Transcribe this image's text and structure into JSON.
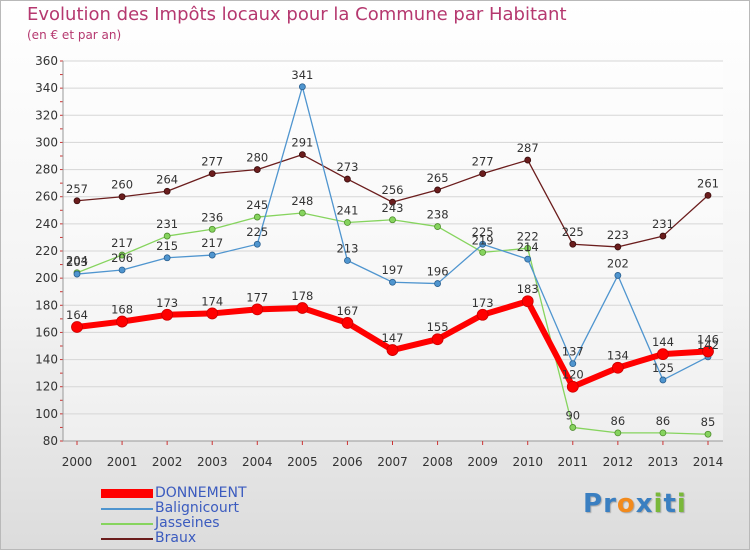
{
  "title": "Evolution des Impôts locaux pour la Commune par Habitant",
  "subtitle": "(en € et par an)",
  "logo": {
    "text": "Proxiti",
    "letters": [
      "P",
      "r",
      "o",
      "x",
      "i",
      "t",
      "i"
    ],
    "colors": [
      "#3a7fc1",
      "#3a7fc1",
      "#f28a1c",
      "#3a7fc1",
      "#7ab83a",
      "#3a7fc1",
      "#7ab83a"
    ]
  },
  "chart_data": {
    "type": "line",
    "title": "Evolution des Impôts locaux pour la Commune par Habitant",
    "subtitle": "(en € et par an)",
    "xlabel": "",
    "ylabel": "",
    "ylim": [
      80,
      360
    ],
    "yticks": [
      80,
      100,
      120,
      140,
      160,
      180,
      200,
      220,
      240,
      260,
      280,
      300,
      320,
      340,
      360
    ],
    "grid": "horizontal",
    "legend_position": "bottom-left",
    "categories": [
      "2000",
      "2001",
      "2002",
      "2003",
      "2004",
      "2005",
      "2006",
      "2007",
      "2008",
      "2009",
      "2010",
      "2011",
      "2012",
      "2013",
      "2014"
    ],
    "series": [
      {
        "name": "DONNEMENT",
        "color": "#ff0000",
        "values": [
          164,
          168,
          173,
          174,
          177,
          178,
          167,
          147,
          155,
          173,
          183,
          120,
          134,
          144,
          146
        ],
        "labels": [
          "164",
          "168",
          "173",
          "174",
          "177",
          "178",
          "167",
          "147",
          "155",
          "173",
          "183",
          "120",
          "134",
          "144",
          "146"
        ]
      },
      {
        "name": "Balignicourt",
        "color": "#4f95cf",
        "values": [
          203,
          206,
          215,
          217,
          225,
          341,
          213,
          197,
          196,
          225,
          214,
          137,
          202,
          125,
          142
        ],
        "labels": [
          "203",
          "206",
          "215",
          "217",
          "225",
          "341",
          "213",
          "197",
          "196",
          "225",
          "214",
          "137",
          "202",
          "125",
          "142"
        ]
      },
      {
        "name": "Jasseines",
        "color": "#86d45e",
        "values": [
          204,
          217,
          231,
          236,
          245,
          248,
          241,
          243,
          238,
          219,
          222,
          90,
          86,
          86,
          85
        ],
        "labels": [
          "204",
          "217",
          "231",
          "236",
          "245",
          "248",
          "241",
          "243",
          "238",
          "219",
          "222",
          "90",
          "86",
          "86",
          "85"
        ]
      },
      {
        "name": "Braux",
        "color": "#6b1d1d",
        "values": [
          257,
          260,
          264,
          277,
          280,
          291,
          273,
          256,
          265,
          277,
          287,
          225,
          223,
          231,
          261
        ],
        "labels": [
          "257",
          "260",
          "264",
          "277",
          "280",
          "291",
          "273",
          "256",
          "265",
          "277",
          "287",
          "225",
          "223",
          "231",
          "261"
        ]
      }
    ]
  }
}
